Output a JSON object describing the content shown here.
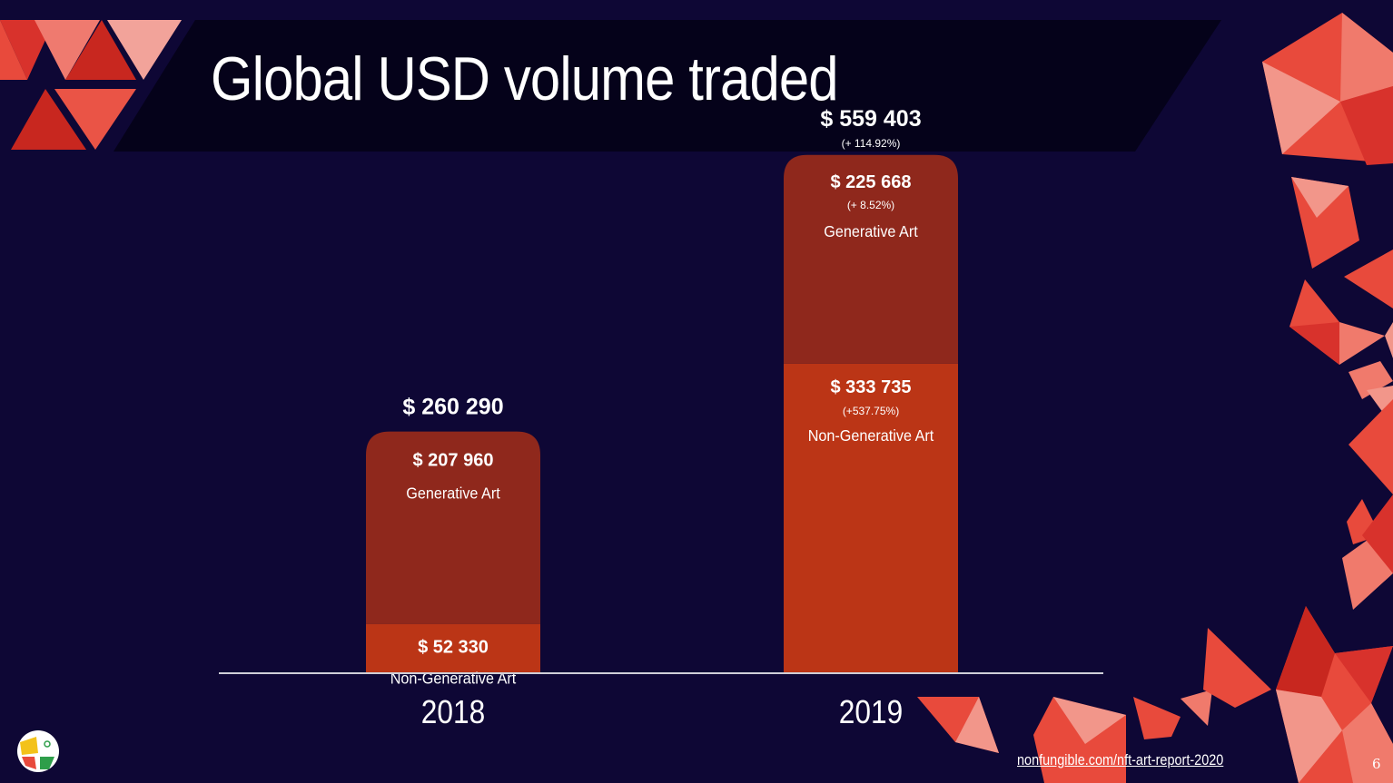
{
  "slide": {
    "title": "Global USD volume traded",
    "source_link": "nonfungible.com/nft-art-report-2020",
    "page_number": "6"
  },
  "colors": {
    "background": "#0e0735",
    "title_band": "#05021a",
    "generative": "#8f281c",
    "non_generative": "#bb3516",
    "accent": "#e84a3c"
  },
  "chart_data": {
    "type": "bar",
    "stacked": true,
    "categories": [
      "2018",
      "2019"
    ],
    "series": [
      {
        "name": "Non-Generative Art",
        "values": [
          52330,
          333735
        ],
        "labels": [
          "$ 52 330",
          "$ 333 735"
        ],
        "change": [
          "",
          "(+537.75%)"
        ]
      },
      {
        "name": "Generative Art",
        "values": [
          207960,
          225668
        ],
        "labels": [
          "$ 207 960",
          "$ 225 668"
        ],
        "change": [
          "",
          "(+ 8.52%)"
        ]
      }
    ],
    "totals": {
      "values": [
        260290,
        559403
      ],
      "labels": [
        "$ 260 290",
        "$ 559 403"
      ],
      "change": [
        "",
        "(+ 114.92%)"
      ]
    },
    "ylim": [
      0,
      570000
    ],
    "grid": false,
    "legend": "none"
  }
}
